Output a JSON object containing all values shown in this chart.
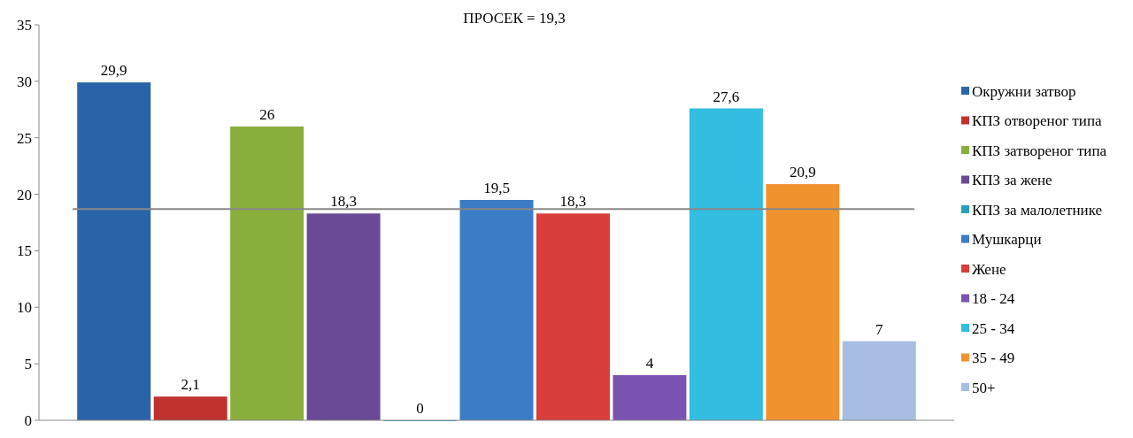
{
  "chart_data": {
    "type": "bar",
    "title": "ПРОСЕК = 19,3",
    "categories": [
      null,
      null,
      null,
      null,
      null,
      null,
      null,
      null,
      null,
      null,
      null
    ],
    "ylim": [
      0,
      35
    ],
    "yticks": [
      0,
      5,
      10,
      15,
      20,
      25,
      30,
      35
    ],
    "grid": false,
    "legend": "right",
    "ref_lines": [
      {
        "axis": "y",
        "value": 18.7,
        "color": "#888888"
      }
    ],
    "series": [
      {
        "name": "Окружни затвор",
        "color": "#2a64a8",
        "values": [
          29.9,
          null,
          null,
          null,
          null,
          null,
          null,
          null,
          null,
          null,
          null
        ],
        "value_labels": [
          "29,9",
          null,
          null,
          null,
          null,
          null,
          null,
          null,
          null,
          null,
          null
        ]
      },
      {
        "name": "КПЗ отвореног типа",
        "color": "#c0322e",
        "values": [
          null,
          2.1,
          null,
          null,
          null,
          null,
          null,
          null,
          null,
          null,
          null
        ],
        "value_labels": [
          null,
          "2,1",
          null,
          null,
          null,
          null,
          null,
          null,
          null,
          null,
          null
        ]
      },
      {
        "name": "КПЗ затвореног типа",
        "color": "#8aae3c",
        "values": [
          null,
          null,
          26,
          null,
          null,
          null,
          null,
          null,
          null,
          null,
          null
        ],
        "value_labels": [
          null,
          null,
          "26",
          null,
          null,
          null,
          null,
          null,
          null,
          null,
          null
        ]
      },
      {
        "name": "КПЗ за жене",
        "color": "#6a4996",
        "values": [
          null,
          null,
          null,
          18.3,
          null,
          null,
          null,
          null,
          null,
          null,
          null
        ],
        "value_labels": [
          null,
          null,
          null,
          "18,3",
          null,
          null,
          null,
          null,
          null,
          null,
          null
        ]
      },
      {
        "name": "КПЗ за малолетнике",
        "color": "#2aa0b8",
        "values": [
          null,
          null,
          null,
          null,
          0,
          null,
          null,
          null,
          null,
          null,
          null
        ],
        "value_labels": [
          null,
          null,
          null,
          null,
          "0",
          null,
          null,
          null,
          null,
          null,
          null
        ]
      },
      {
        "name": "Мушкарци",
        "color": "#3b7cc6",
        "values": [
          null,
          null,
          null,
          null,
          null,
          19.5,
          null,
          null,
          null,
          null,
          null
        ],
        "value_labels": [
          null,
          null,
          null,
          null,
          null,
          "19,5",
          null,
          null,
          null,
          null,
          null
        ]
      },
      {
        "name": "Жене",
        "color": "#d83e3a",
        "values": [
          null,
          null,
          null,
          null,
          null,
          null,
          18.3,
          null,
          null,
          null,
          null
        ],
        "value_labels": [
          null,
          null,
          null,
          null,
          null,
          null,
          "18,3",
          null,
          null,
          null,
          null
        ]
      },
      {
        "name": "18 - 24",
        "color": "#7a52b0",
        "values": [
          null,
          null,
          null,
          null,
          null,
          null,
          null,
          4,
          null,
          null,
          null
        ],
        "value_labels": [
          null,
          null,
          null,
          null,
          null,
          null,
          null,
          "4",
          null,
          null,
          null
        ]
      },
      {
        "name": "25 - 34",
        "color": "#33bde0",
        "values": [
          null,
          null,
          null,
          null,
          null,
          null,
          null,
          null,
          27.6,
          null,
          null
        ],
        "value_labels": [
          null,
          null,
          null,
          null,
          null,
          null,
          null,
          null,
          "27,6",
          null,
          null
        ]
      },
      {
        "name": "35 - 49",
        "color": "#f0922e",
        "values": [
          null,
          null,
          null,
          null,
          null,
          null,
          null,
          null,
          null,
          20.9,
          null
        ],
        "value_labels": [
          null,
          null,
          null,
          null,
          null,
          null,
          null,
          null,
          null,
          "20,9",
          null
        ]
      },
      {
        "name": "50+",
        "color": "#a8bde2",
        "values": [
          null,
          null,
          null,
          null,
          null,
          null,
          null,
          null,
          null,
          null,
          7
        ],
        "value_labels": [
          null,
          null,
          null,
          null,
          null,
          null,
          null,
          null,
          null,
          null,
          "7"
        ]
      }
    ]
  }
}
